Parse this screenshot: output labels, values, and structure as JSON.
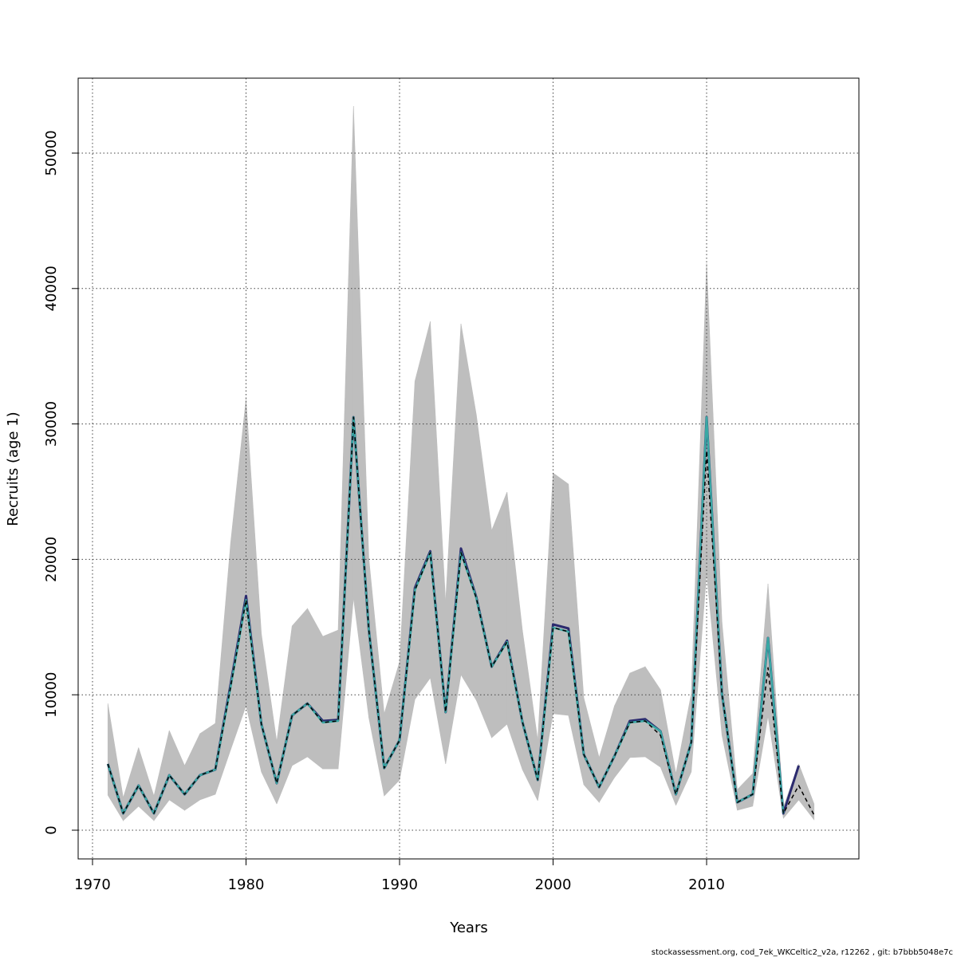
{
  "chart_data": {
    "type": "line",
    "xlabel": "Years",
    "ylabel": "Recruits (age 1)",
    "footer": "stockassessment.org, cod_7ek_WKCeltic2_v2a, r12262 , git: b7bbb5048e7c",
    "x": [
      1971,
      1972,
      1973,
      1974,
      1975,
      1976,
      1977,
      1978,
      1979,
      1980,
      1981,
      1982,
      1983,
      1984,
      1985,
      1986,
      1987,
      1988,
      1989,
      1990,
      1991,
      1992,
      1993,
      1994,
      1995,
      1996,
      1997,
      1998,
      1999,
      2000,
      2001,
      2002,
      2003,
      2004,
      2005,
      2006,
      2007,
      2008,
      2009,
      2010,
      2011,
      2012,
      2013,
      2014,
      2015,
      2016,
      2017
    ],
    "band": {
      "color": "#bebebe",
      "upper": [
        9360,
        2400,
        6100,
        2530,
        7360,
        4770,
        7130,
        7890,
        21260,
        31860,
        14490,
        6540,
        15080,
        16370,
        14310,
        14780,
        53470,
        20080,
        8600,
        12430,
        33160,
        37570,
        16840,
        37400,
        30680,
        22140,
        24970,
        14780,
        6650,
        26380,
        25560,
        9780,
        5360,
        9190,
        11600,
        12070,
        10370,
        4180,
        10070,
        41870,
        15370,
        3000,
        4180,
        18200,
        1710,
        4890,
        1940
      ],
      "lower": [
        2590,
        710,
        1770,
        710,
        2240,
        1470,
        2240,
        2650,
        5950,
        9190,
        4300,
        1940,
        4770,
        5420,
        4530,
        4530,
        17140,
        8300,
        2530,
        3710,
        9660,
        11250,
        4890,
        11480,
        9600,
        6830,
        7830,
        4480,
        2180,
        8600,
        8480,
        3360,
        2060,
        3890,
        5360,
        5420,
        4650,
        1830,
        4300,
        19020,
        7010,
        1470,
        1770,
        8420,
        880,
        2240,
        770
      ]
    },
    "series": [
      {
        "color": "#2b2a6e",
        "width": 3,
        "dashed": false,
        "values": [
          4890,
          1240,
          3300,
          1240,
          4060,
          2650,
          4060,
          4480,
          10800,
          17300,
          7830,
          3470,
          8480,
          9360,
          8070,
          8150,
          30500,
          14780,
          4590,
          6650,
          17900,
          20600,
          8720,
          20800,
          17200,
          12070,
          14000,
          8010,
          3710,
          15200,
          14900,
          5600,
          3180,
          5480,
          8070,
          8200,
          7300,
          2650,
          6480,
          30500,
          10070,
          2060,
          2650,
          14190,
          1240,
          4770,
          null
        ]
      },
      {
        "color": "#3aa8a4",
        "width": 2.5,
        "dashed": false,
        "values": [
          4890,
          1240,
          3300,
          1240,
          4060,
          2650,
          4060,
          4480,
          10600,
          17000,
          7830,
          3470,
          8480,
          9360,
          7950,
          8070,
          30500,
          14780,
          4590,
          6650,
          17730,
          20500,
          8720,
          20500,
          17140,
          12070,
          13900,
          8010,
          3710,
          14960,
          14660,
          5600,
          3180,
          5480,
          7950,
          8070,
          7300,
          2650,
          6480,
          30500,
          10070,
          2060,
          2650,
          14190,
          1240,
          null,
          null
        ]
      },
      {
        "color": "#000000",
        "width": 1.5,
        "dashed": true,
        "values": [
          4890,
          1240,
          3300,
          1240,
          4060,
          2650,
          4060,
          4480,
          10600,
          17000,
          7830,
          3470,
          8480,
          9360,
          7950,
          8070,
          30500,
          14780,
          4590,
          6650,
          17730,
          20500,
          8720,
          20500,
          17140,
          12070,
          13900,
          8010,
          3710,
          14960,
          14660,
          5600,
          3180,
          5480,
          7950,
          8070,
          7000,
          2650,
          6480,
          28000,
          10070,
          2060,
          2650,
          12000,
          1240,
          3300,
          1120
        ]
      }
    ],
    "xlim": [
      1969.065,
      2019.92
    ],
    "ylim": [
      -2120,
      55535
    ],
    "xticks": [
      1970,
      1980,
      1990,
      2000,
      2010
    ],
    "yticks": [
      0,
      10000,
      20000,
      30000,
      40000,
      50000
    ],
    "grid": true
  }
}
